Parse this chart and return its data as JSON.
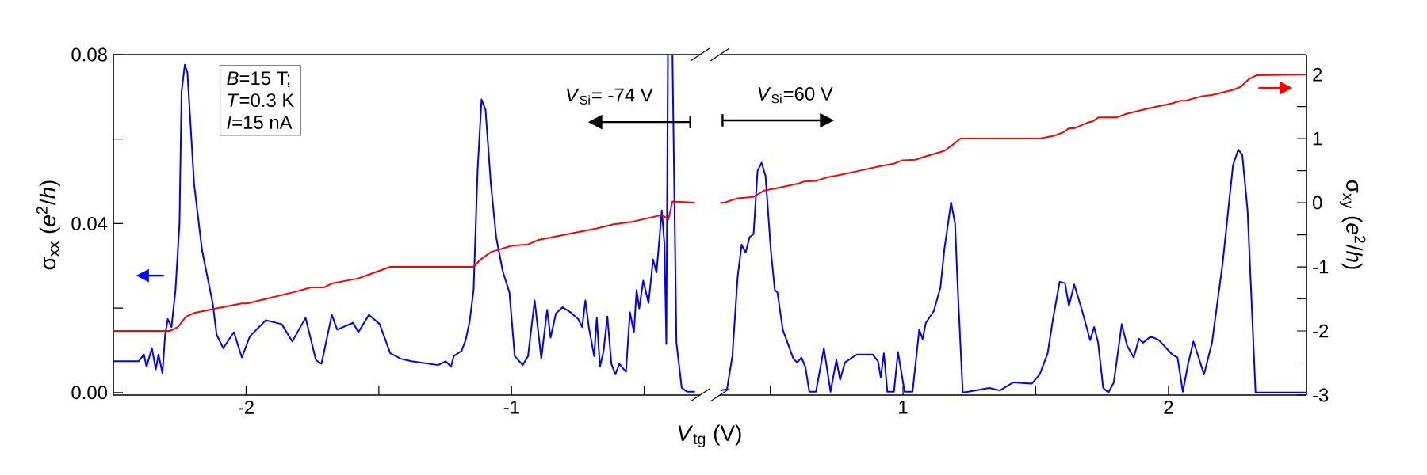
{
  "chart_data": [
    {
      "type": "line",
      "xlabel": "*V*$_{tg}$ (V)",
      "ylabel": "σ$_{xx}$ (*e*$^{2}$/*h*)",
      "xlim": [
        -2.5,
        -0.29
      ],
      "ylim": [
        -0.0006,
        0.08
      ],
      "y2lim": [
        -3,
        2.31
      ],
      "xticks": [
        -2,
        {
          "value": -1.5,
          "label": null
        },
        -1,
        {
          "value": -0.5,
          "label": null
        }
      ],
      "yticks": [
        {
          "value": 0,
          "label": "0.00"
        },
        {
          "value": 0.02,
          "label": null
        },
        {
          "value": 0.04,
          "label": "0.04"
        },
        {
          "value": 0.06,
          "label": null
        },
        {
          "value": 0.08,
          "label": "0.08"
        }
      ],
      "tick_labels": "xy",
      "annotations": [
        "*B*=15 T;",
        "*T*=0.3 K",
        "*I*=15 nA",
        "*V*$_{Si}$= -74 V"
      ],
      "series": [
        {
          "color": "#0000ff",
          "x": [
            -2.5,
            -2.405,
            -2.385,
            -2.375,
            -2.355,
            -2.34,
            -2.33,
            -2.315,
            -2.305,
            -2.295,
            -2.281,
            -2.266,
            -2.251,
            -2.243,
            -2.231,
            -2.221,
            -2.196,
            -2.166,
            -2.126,
            -2.111,
            -2.086,
            -2.046,
            -2.016,
            -1.986,
            -1.926,
            -1.866,
            -1.826,
            -1.776,
            -1.737,
            -1.716,
            -1.677,
            -1.657,
            -1.597,
            -1.577,
            -1.537,
            -1.497,
            -1.457,
            -1.417,
            -1.377,
            -1.277,
            -1.248,
            -1.228,
            -1.218,
            -1.188,
            -1.173,
            -1.158,
            -1.143,
            -1.128,
            -1.113,
            -1.098,
            -1.078,
            -1.058,
            -1.033,
            -1.008,
            -0.988,
            -0.958,
            -0.938,
            -0.913,
            -0.888,
            -0.866,
            -0.853,
            -0.833,
            -0.808,
            -0.778,
            -0.749,
            -0.734,
            -0.722,
            -0.709,
            -0.689,
            -0.679,
            -0.667,
            -0.654,
            -0.639,
            -0.624,
            -0.609,
            -0.594,
            -0.569,
            -0.554,
            -0.539,
            -0.529,
            -0.519,
            -0.504,
            -0.484,
            -0.467,
            -0.454,
            -0.434,
            -0.424,
            -0.417,
            -0.411,
            -0.394,
            -0.379,
            -0.359,
            -0.339,
            -0.309
          ],
          "values": [
            0.0074,
            0.0074,
            0.009,
            0.0061,
            0.0105,
            0.0055,
            0.009,
            0.0046,
            0.0137,
            0.0174,
            0.0155,
            0.0243,
            0.04,
            0.0713,
            0.0776,
            0.0757,
            0.0494,
            0.0337,
            0.0212,
            0.0137,
            0.0105,
            0.0143,
            0.0083,
            0.0133,
            0.0171,
            0.0162,
            0.0121,
            0.0177,
            0.0077,
            0.0068,
            0.0184,
            0.0149,
            0.0165,
            0.0143,
            0.0184,
            0.0162,
            0.0093,
            0.008,
            0.0074,
            0.0065,
            0.0074,
            0.0061,
            0.0086,
            0.0099,
            0.0124,
            0.0168,
            0.0243,
            0.0525,
            0.0694,
            0.0669,
            0.0494,
            0.0368,
            0.0287,
            0.0237,
            0.0086,
            0.0065,
            0.0086,
            0.0218,
            0.008,
            0.0196,
            0.013,
            0.0187,
            0.0202,
            0.019,
            0.0174,
            0.0155,
            0.0218,
            0.0155,
            0.0086,
            0.0177,
            0.0061,
            0.0096,
            0.018,
            0.0068,
            0.0043,
            0.0068,
            0.0049,
            0.019,
            0.0143,
            0.0243,
            0.0199,
            0.0265,
            0.0212,
            0.0315,
            0.0284,
            0.0431,
            0.035,
            0.0115,
            0.08,
            0.08,
            0.0118,
            0.0011,
            0.0002,
            0.0002
          ]
        },
        {
          "color": "#ff0000",
          "axis": "y2",
          "x": [
            -2.5,
            -2.287,
            -2.257,
            -2.227,
            -2.196,
            -2.116,
            -2.016,
            -1.996,
            -1.916,
            -1.816,
            -1.756,
            -1.706,
            -1.677,
            -1.577,
            -1.537,
            -1.457,
            -1.377,
            -1.143,
            -1.118,
            -1.078,
            -0.998,
            -0.938,
            -0.898,
            -0.778,
            -0.679,
            -0.619,
            -0.549,
            -0.434,
            -0.409,
            -0.394,
            -0.309
          ],
          "values": [
            -2,
            -2,
            -1.94,
            -1.78,
            -1.72,
            -1.65,
            -1.57,
            -1.57,
            -1.49,
            -1.39,
            -1.32,
            -1.32,
            -1.26,
            -1.18,
            -1.12,
            -1.0,
            -1.0,
            -1.0,
            -0.89,
            -0.77,
            -0.67,
            -0.65,
            -0.58,
            -0.48,
            -0.4,
            -0.34,
            -0.3,
            -0.19,
            -0.26,
            0.02,
            0.0
          ]
        }
      ]
    },
    {
      "type": "line",
      "y2label": "σ$_{xy}$ (*e*$^{2}$/*h*)",
      "xlim": [
        0.31,
        2.52
      ],
      "ylim": [
        -0.0006,
        0.08
      ],
      "y2lim": [
        -3,
        2.31
      ],
      "xticks": [
        {
          "value": 0.5,
          "label": null
        },
        1,
        {
          "value": 1.5,
          "label": null
        },
        2
      ],
      "y2ticks": [
        -3,
        {
          "value": -2.5,
          "label": null
        },
        -2,
        {
          "value": -1.5,
          "label": null
        },
        -1,
        {
          "value": -0.5,
          "label": null
        },
        0,
        {
          "value": 0.5,
          "label": null
        },
        1,
        {
          "value": 1.5,
          "label": null
        },
        2
      ],
      "tick_labels": "xy2",
      "annotations": [
        "*V*$_{Si}$=60 V"
      ],
      "series": [
        {
          "color": "#0000ff",
          "x": [
            0.312,
            0.337,
            0.357,
            0.377,
            0.392,
            0.407,
            0.422,
            0.437,
            0.452,
            0.467,
            0.482,
            0.502,
            0.517,
            0.527,
            0.547,
            0.587,
            0.602,
            0.617,
            0.632,
            0.647,
            0.672,
            0.702,
            0.727,
            0.749,
            0.763,
            0.781,
            0.826,
            0.886,
            0.906,
            0.916,
            0.928,
            0.941,
            0.966,
            0.981,
            1.006,
            1.036,
            1.061,
            1.074,
            1.086,
            1.116,
            1.141,
            1.156,
            1.181,
            1.196,
            1.206,
            1.225,
            1.246,
            1.325,
            1.365,
            1.415,
            1.485,
            1.515,
            1.545,
            1.565,
            1.59,
            1.61,
            1.625,
            1.645,
            1.675,
            1.705,
            1.72,
            1.735,
            1.754,
            1.774,
            1.794,
            1.824,
            1.844,
            1.869,
            1.889,
            1.904,
            1.934,
            1.964,
            2.014,
            2.034,
            2.054,
            2.074,
            2.094,
            2.134,
            2.164,
            2.204,
            2.243,
            2.263,
            2.278,
            2.298,
            2.328,
            2.363,
            2.52
          ],
          "values": [
            0.0005,
            0.0008,
            0.0086,
            0.0274,
            0.035,
            0.0331,
            0.0368,
            0.0375,
            0.0525,
            0.0544,
            0.0513,
            0.0337,
            0.0243,
            0.0237,
            0.0149,
            0.008,
            0.0071,
            0.0083,
            0.0061,
            0.0002,
            0.0002,
            0.0105,
            0.0002,
            0.0077,
            0.003,
            0.0071,
            0.009,
            0.009,
            0.0074,
            0.0036,
            0.0093,
            0.0002,
            0.0002,
            0.0096,
            0.0002,
            0.0002,
            0.0149,
            0.0127,
            0.0165,
            0.0193,
            0.0249,
            0.034,
            0.045,
            0.04,
            0.0249,
            0,
            0.0002,
            0.0011,
            0.0005,
            0.0024,
            0.0021,
            0.0043,
            0.0093,
            0.0174,
            0.0262,
            0.0259,
            0.0205,
            0.0256,
            0.0193,
            0.0124,
            0.0155,
            0.0118,
            0.0011,
            0,
            0.0024,
            0.0162,
            0.0111,
            0.0083,
            0.0127,
            0.0118,
            0.0133,
            0.0124,
            0.009,
            0.0083,
            0.0002,
            0.0068,
            0.0121,
            0.0043,
            0.0118,
            0.0306,
            0.0538,
            0.0575,
            0.0563,
            0.0431,
            0,
            0,
            0
          ]
        },
        {
          "color": "#ff0000",
          "axis": "y2",
          "x": [
            0.312,
            0.327,
            0.377,
            0.437,
            0.477,
            0.527,
            0.607,
            0.627,
            0.672,
            0.717,
            0.747,
            0.826,
            0.926,
            0.966,
            0.996,
            1.046,
            1.076,
            1.156,
            1.186,
            1.216,
            1.365,
            1.515,
            1.565,
            1.605,
            1.625,
            1.645,
            1.695,
            1.715,
            1.735,
            1.804,
            1.844,
            1.924,
            2.014,
            2.044,
            2.064,
            2.124,
            2.164,
            2.243,
            2.273,
            2.303,
            2.333,
            2.52
          ],
          "values": [
            0.0,
            0.0,
            0.07,
            0.09,
            0.19,
            0.23,
            0.3,
            0.33,
            0.34,
            0.4,
            0.42,
            0.49,
            0.58,
            0.61,
            0.66,
            0.67,
            0.71,
            0.81,
            0.9,
            1.0,
            1.0,
            1.0,
            1.04,
            1.1,
            1.16,
            1.16,
            1.25,
            1.27,
            1.33,
            1.33,
            1.39,
            1.47,
            1.55,
            1.59,
            1.59,
            1.66,
            1.68,
            1.76,
            1.81,
            1.93,
            1.99,
            2.0
          ]
        }
      ]
    }
  ]
}
